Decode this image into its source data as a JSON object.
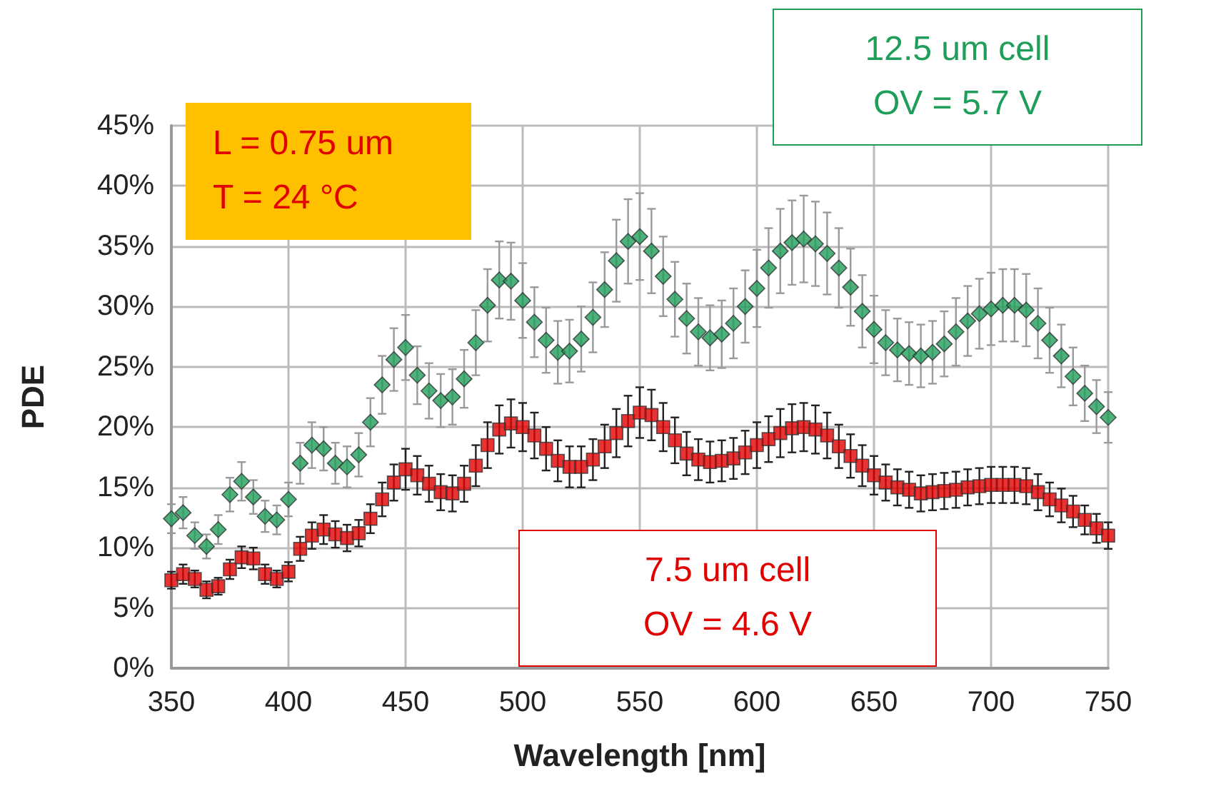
{
  "chart_data": {
    "type": "scatter",
    "xlabel": "Wavelength [nm]",
    "ylabel": "PDE",
    "x": [
      350,
      355,
      360,
      365,
      370,
      375,
      380,
      385,
      390,
      395,
      400,
      405,
      410,
      415,
      420,
      425,
      430,
      435,
      440,
      445,
      450,
      455,
      460,
      465,
      470,
      475,
      480,
      485,
      490,
      495,
      500,
      505,
      510,
      515,
      520,
      525,
      530,
      535,
      540,
      545,
      550,
      555,
      560,
      565,
      570,
      575,
      580,
      585,
      590,
      595,
      600,
      605,
      610,
      615,
      620,
      625,
      630,
      635,
      640,
      645,
      650,
      655,
      660,
      665,
      670,
      675,
      680,
      685,
      690,
      695,
      700,
      705,
      710,
      715,
      720,
      725,
      730,
      735,
      740,
      745,
      750
    ],
    "xlim": [
      350,
      750
    ],
    "xticks": [
      350,
      400,
      450,
      500,
      550,
      600,
      650,
      700,
      750
    ],
    "ylim": [
      0,
      45
    ],
    "yticks": [
      {
        "value": 0,
        "label": "0%"
      },
      {
        "value": 5,
        "label": "5%"
      },
      {
        "value": 10,
        "label": "10%"
      },
      {
        "value": 15,
        "label": "15%"
      },
      {
        "value": 20,
        "label": "20%"
      },
      {
        "value": 25,
        "label": "25%"
      },
      {
        "value": 30,
        "label": "30%"
      },
      {
        "value": 35,
        "label": "35%"
      },
      {
        "value": 40,
        "label": "40%"
      },
      {
        "value": 45,
        "label": "45%"
      }
    ],
    "grid": true,
    "series": [
      {
        "color": "#1f9e5a",
        "marker": "diamond",
        "values": [
          12.4,
          12.9,
          11.0,
          10.1,
          11.5,
          14.4,
          15.5,
          14.2,
          12.6,
          12.3,
          14.0,
          17.0,
          18.5,
          18.2,
          17.0,
          16.7,
          17.7,
          20.4,
          23.5,
          25.6,
          26.6,
          24.3,
          23.0,
          22.2,
          22.5,
          24.0,
          27.0,
          30.1,
          32.2,
          32.1,
          30.5,
          28.7,
          27.2,
          26.2,
          26.3,
          27.3,
          29.1,
          31.4,
          33.8,
          35.4,
          35.8,
          34.6,
          32.5,
          30.6,
          29.0,
          27.9,
          27.4,
          27.7,
          28.6,
          30.0,
          31.5,
          33.2,
          34.6,
          35.3,
          35.6,
          35.2,
          34.4,
          33.2,
          31.6,
          29.6,
          28.1,
          27.0,
          26.4,
          26.1,
          25.9,
          26.2,
          26.9,
          27.9,
          28.8,
          29.4,
          29.8,
          30.1,
          30.1,
          29.7,
          28.6,
          27.2,
          25.9,
          24.2,
          22.8,
          21.7,
          20.8
        ],
        "errors": [
          1.2,
          1.3,
          1.1,
          1.0,
          1.2,
          1.4,
          1.6,
          1.4,
          1.3,
          1.2,
          1.4,
          1.7,
          1.9,
          1.8,
          1.7,
          1.7,
          1.8,
          2.0,
          2.4,
          2.6,
          2.7,
          2.4,
          2.3,
          2.2,
          2.3,
          2.4,
          2.7,
          3.0,
          3.2,
          3.2,
          3.1,
          2.9,
          2.7,
          2.6,
          2.6,
          2.7,
          2.9,
          3.1,
          3.4,
          3.5,
          3.6,
          3.5,
          3.3,
          3.1,
          2.9,
          2.8,
          2.7,
          2.8,
          2.9,
          3.0,
          3.2,
          3.3,
          3.5,
          3.5,
          3.6,
          3.5,
          3.4,
          3.3,
          3.2,
          3.0,
          2.8,
          2.7,
          2.6,
          2.6,
          2.6,
          2.6,
          2.7,
          2.8,
          2.9,
          2.9,
          3.0,
          3.0,
          3.0,
          3.0,
          2.9,
          2.7,
          2.6,
          2.4,
          2.3,
          2.2,
          2.1
        ]
      },
      {
        "color": "#e00000",
        "marker": "square",
        "values": [
          7.3,
          7.8,
          7.4,
          6.5,
          6.8,
          8.2,
          9.2,
          9.1,
          7.8,
          7.4,
          8.0,
          9.9,
          11.0,
          11.5,
          11.1,
          10.8,
          11.2,
          12.4,
          14.0,
          15.4,
          16.5,
          16.0,
          15.3,
          14.6,
          14.5,
          15.3,
          16.8,
          18.5,
          19.8,
          20.3,
          20.0,
          19.3,
          18.2,
          17.2,
          16.7,
          16.7,
          17.3,
          18.4,
          19.5,
          20.5,
          21.2,
          21.0,
          20.0,
          18.9,
          17.8,
          17.3,
          17.1,
          17.2,
          17.4,
          17.9,
          18.5,
          19.0,
          19.5,
          19.9,
          20.0,
          19.8,
          19.3,
          18.4,
          17.6,
          16.8,
          16.0,
          15.4,
          15.0,
          14.8,
          14.5,
          14.6,
          14.7,
          14.8,
          15.0,
          15.1,
          15.2,
          15.2,
          15.2,
          15.1,
          14.6,
          14.0,
          13.5,
          13.0,
          12.3,
          11.6,
          11.0
        ],
        "errors": [
          0.7,
          0.8,
          0.7,
          0.7,
          0.7,
          0.8,
          0.9,
          0.9,
          0.8,
          0.7,
          0.8,
          1.0,
          1.1,
          1.2,
          1.1,
          1.1,
          1.1,
          1.2,
          1.4,
          1.5,
          1.7,
          1.6,
          1.5,
          1.5,
          1.5,
          1.5,
          1.7,
          1.9,
          2.0,
          2.0,
          2.0,
          1.9,
          1.8,
          1.7,
          1.7,
          1.7,
          1.7,
          1.8,
          2.0,
          2.1,
          2.1,
          2.1,
          2.0,
          1.9,
          1.8,
          1.7,
          1.7,
          1.7,
          1.7,
          1.8,
          1.9,
          1.9,
          2.0,
          2.0,
          2.0,
          2.0,
          1.9,
          1.8,
          1.8,
          1.7,
          1.6,
          1.5,
          1.5,
          1.5,
          1.5,
          1.5,
          1.5,
          1.5,
          1.5,
          1.5,
          1.5,
          1.5,
          1.5,
          1.5,
          1.5,
          1.4,
          1.4,
          1.3,
          1.2,
          1.2,
          1.1
        ]
      }
    ],
    "annotations": [
      "L = 0.75 um\nT = 24 °C",
      "12.5 um cell\nOV = 5.7 V",
      "7.5 um cell\nOV = 4.6 V"
    ]
  }
}
